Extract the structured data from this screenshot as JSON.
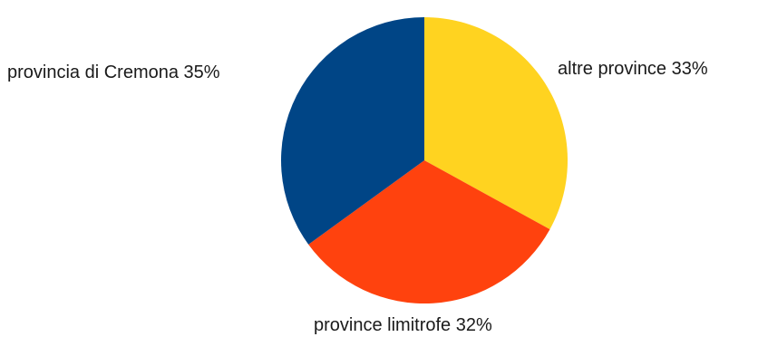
{
  "chart_data": {
    "type": "pie",
    "slices": [
      {
        "label": "altre province 33%",
        "value": 33,
        "color": "#ffd320"
      },
      {
        "label": "province limitrofe 32%",
        "value": 32,
        "color": "#ff420e"
      },
      {
        "label": "provincia di Cremona 35%",
        "value": 35,
        "color": "#004586"
      }
    ],
    "start_angle": "12 o'clock",
    "direction": "clockwise"
  }
}
